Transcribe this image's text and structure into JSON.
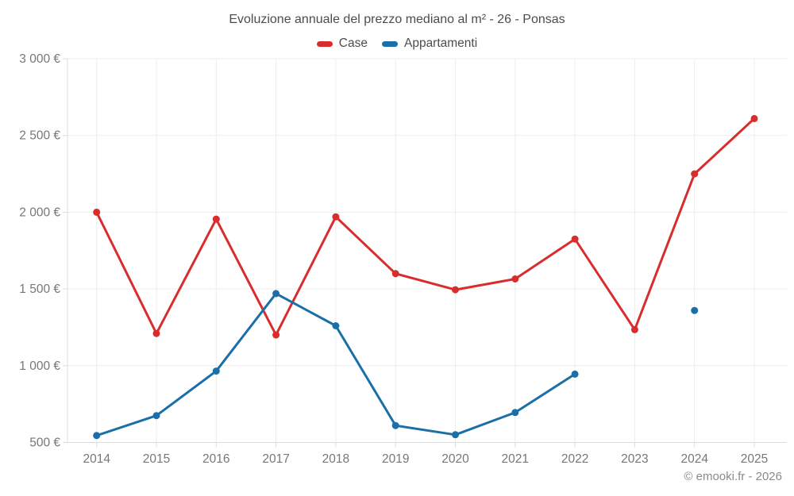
{
  "footer": {
    "credit": "© emooki.fr - 2026"
  },
  "chart_data": {
    "type": "line",
    "title": "Evoluzione annuale del prezzo mediano al m² - 26 - Ponsas",
    "categories": [
      "2014",
      "2015",
      "2016",
      "2017",
      "2018",
      "2019",
      "2020",
      "2021",
      "2022",
      "2023",
      "2024",
      "2025"
    ],
    "series": [
      {
        "name": "Case",
        "color": "#d92d2d",
        "values": [
          2000,
          1210,
          1955,
          1200,
          1970,
          1600,
          1495,
          1565,
          1825,
          1235,
          2250,
          2610
        ]
      },
      {
        "name": "Appartamenti",
        "color": "#1a6fa8",
        "values": [
          545,
          675,
          965,
          1470,
          1260,
          610,
          550,
          695,
          945,
          null,
          1360,
          null
        ]
      }
    ],
    "xlabel": "",
    "ylabel": "",
    "ylim": [
      500,
      3000
    ],
    "ytick_values": [
      500,
      1000,
      1500,
      2000,
      2500,
      3000
    ],
    "ytick_labels": [
      "500 €",
      "1 000 €",
      "1 500 €",
      "2 000 €",
      "2 500 €",
      "3 000 €"
    ],
    "grid": true,
    "legend_position": "top"
  }
}
